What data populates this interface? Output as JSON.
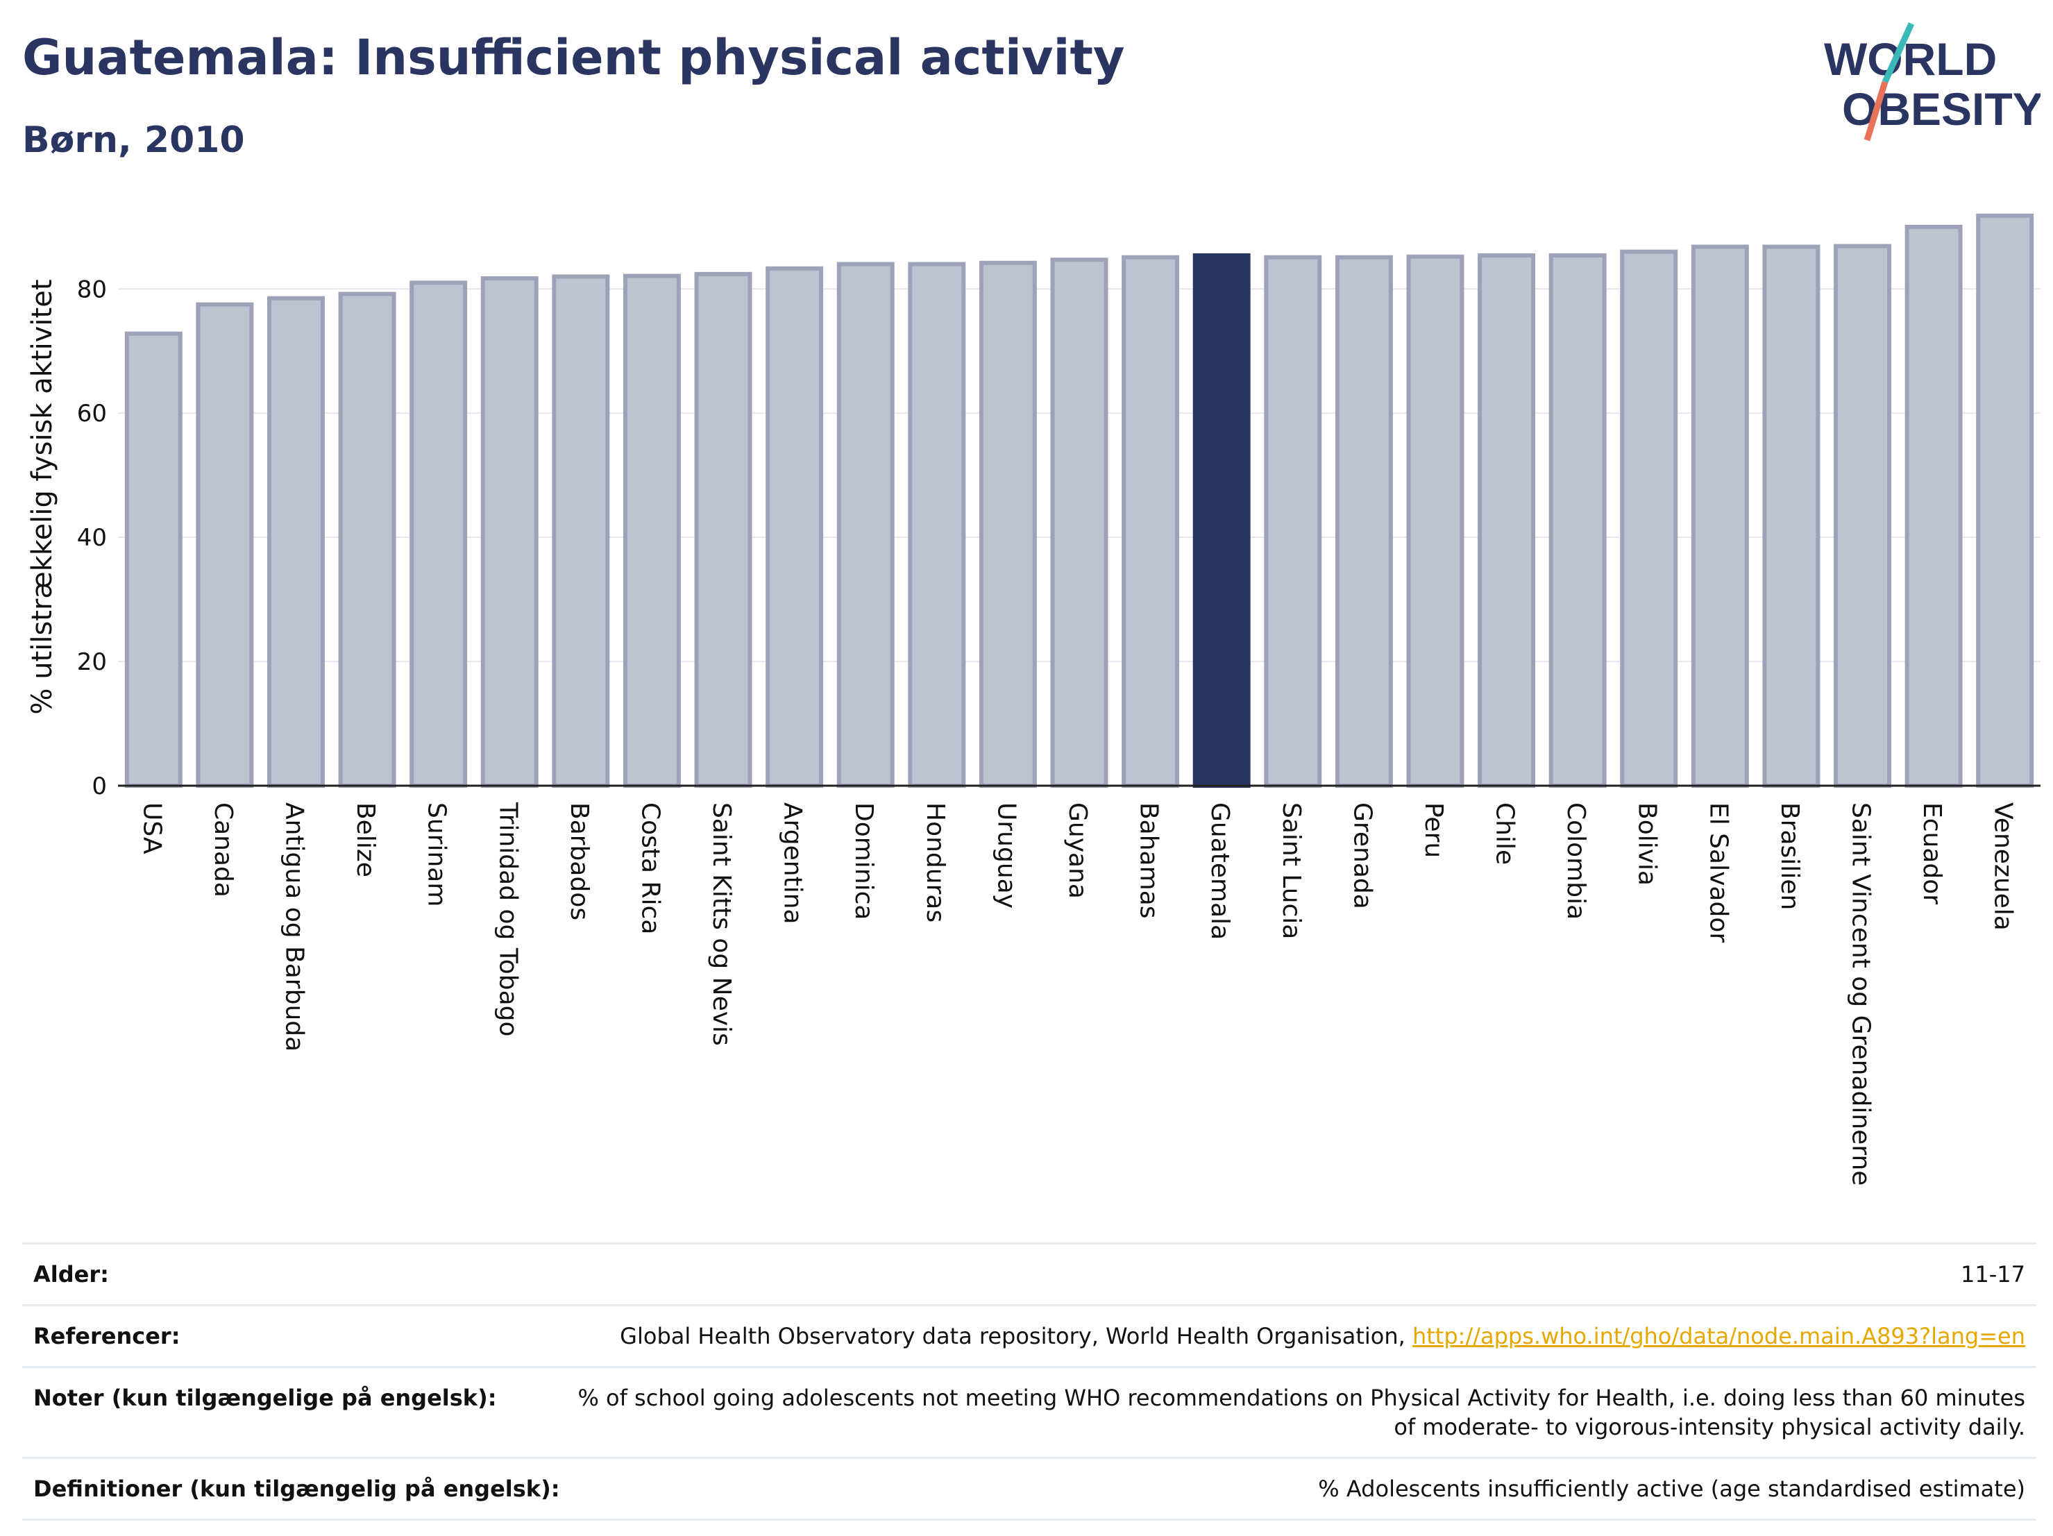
{
  "header": {
    "title": "Guatemala: Insufficient physical activity",
    "subtitle": "Børn, 2010"
  },
  "logo": {
    "line1": "WORLD",
    "line2": "OBESITY",
    "colors": {
      "text": "#2b3561",
      "slash_top": "#3bb8b8",
      "slash_bottom": "#e8735a"
    }
  },
  "colors": {
    "bar": "#bfc2d0",
    "bar_border": "#9da2b8",
    "highlight": "#2b3561",
    "grid": "#e5e7ee",
    "axis": "#222222"
  },
  "chart_data": {
    "type": "bar",
    "ylabel": "% utilstrækkelig fysisk aktivitet",
    "ylim": [
      0,
      93
    ],
    "yticks": [
      0,
      20,
      40,
      60,
      80
    ],
    "grid": true,
    "highlight": "Guatemala",
    "categories": [
      "USA",
      "Canada",
      "Antigua og Barbuda",
      "Belize",
      "Surinam",
      "Trinidad og Tobago",
      "Barbados",
      "Costa Rica",
      "Saint Kitts og Nevis",
      "Argentina",
      "Dominica",
      "Honduras",
      "Uruguay",
      "Guyana",
      "Bahamas",
      "Guatemala",
      "Saint Lucia",
      "Grenada",
      "Peru",
      "Chile",
      "Colombia",
      "Bolivia",
      "El Salvador",
      "Brasilien",
      "Saint Vincent og Grenadinerne",
      "Ecuador",
      "Venezuela"
    ],
    "values": [
      72.8,
      77.5,
      78.5,
      79.2,
      81.0,
      81.7,
      82.0,
      82.1,
      82.4,
      83.3,
      84.0,
      84.0,
      84.2,
      84.7,
      85.1,
      85.4,
      85.1,
      85.1,
      85.2,
      85.4,
      85.4,
      86.0,
      86.8,
      86.8,
      86.9,
      90.0,
      91.8
    ]
  },
  "info": {
    "rows": [
      {
        "key": "Alder:",
        "value": "11-17"
      },
      {
        "key": "Referencer:",
        "value": "Global Health Observatory data repository, World Health Organisation, ",
        "link": "http://apps.who.int/gho/data/node.main.A893?lang=en"
      },
      {
        "key": "Noter (kun tilgængelige på engelsk):",
        "value": "% of school going adolescents not meeting WHO recommendations on Physical Activity for Health, i.e. doing less than 60 minutes of moderate- to vigorous-intensity physical activity daily."
      },
      {
        "key": "Definitioner (kun tilgængelig på engelsk):",
        "value": "% Adolescents insufficiently active (age standardised estimate)"
      }
    ]
  }
}
